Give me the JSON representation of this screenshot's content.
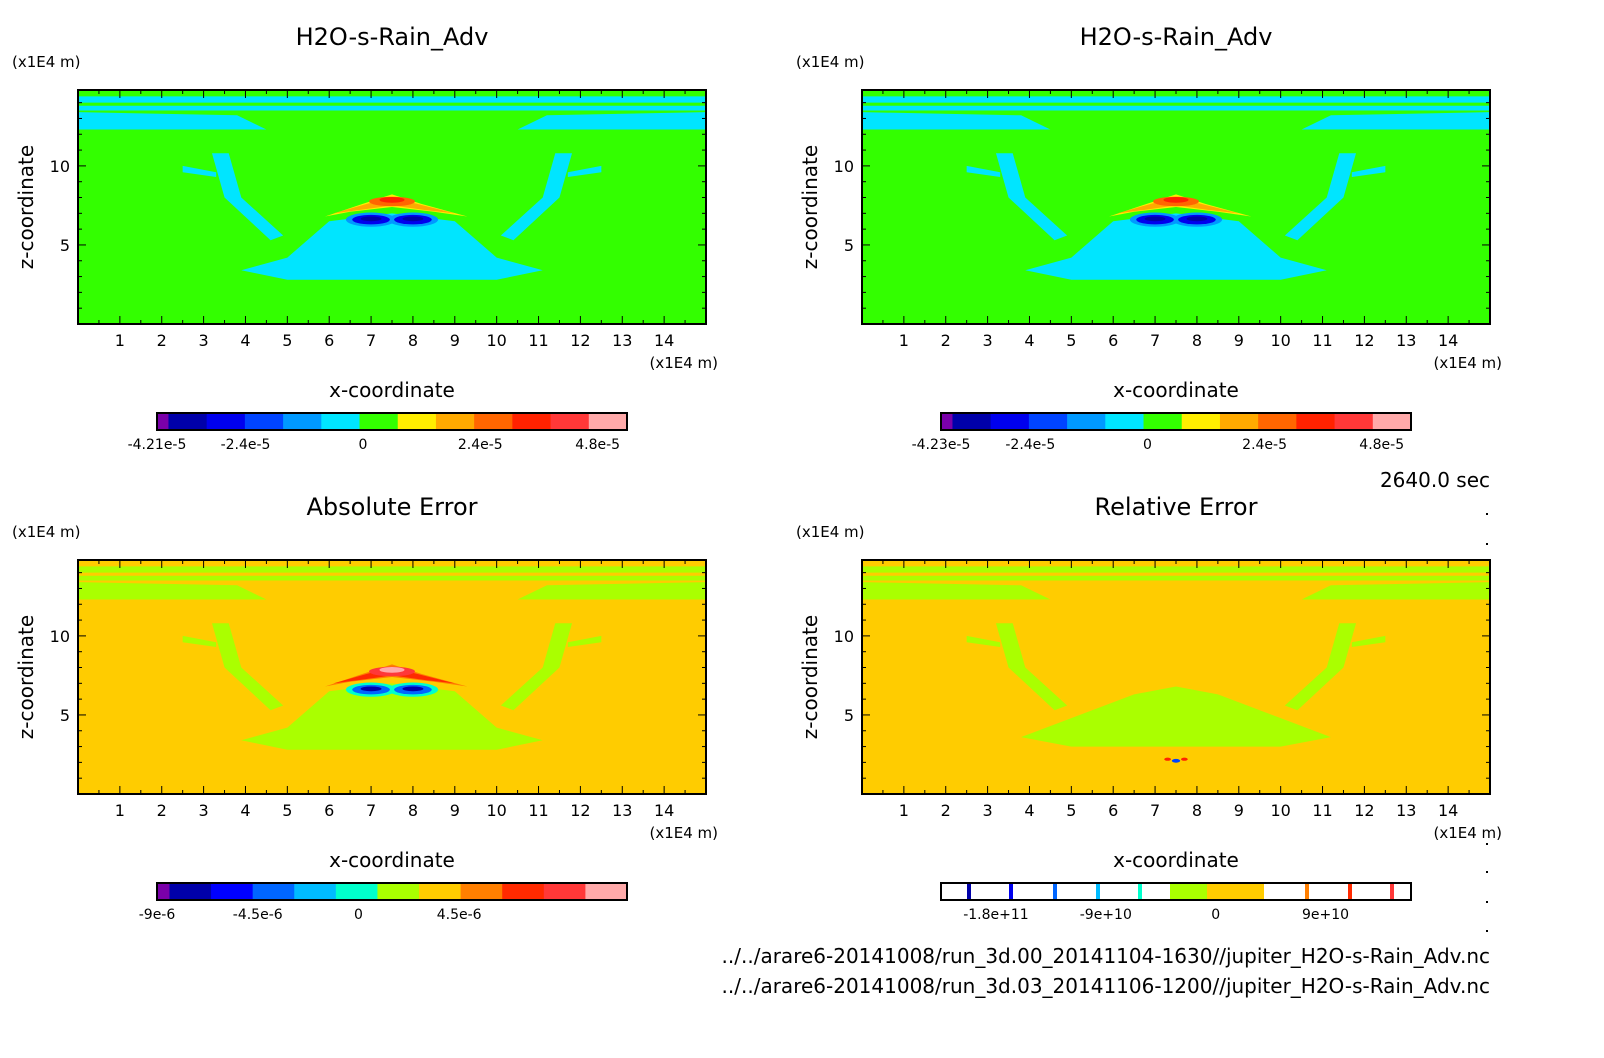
{
  "time_label": "2640.0 sec",
  "files": [
    "../../arare6-20141008/run_3d.00_20141104-1630//jupiter_H2O-s-Rain_Adv.nc",
    "../../arare6-20141008/run_3d.03_20141106-1200//jupiter_H2O-s-Rain_Adv.nc"
  ],
  "chart_data": [
    {
      "type": "heatmap",
      "title": "H2O-s-Rain_Adv",
      "xlabel": "x-coordinate",
      "ylabel": "z-coordinate",
      "x_unit": "(x1E4 m)",
      "y_unit": "(x1E4 m)",
      "xlim": [
        0,
        15
      ],
      "ylim": [
        0,
        14.8
      ],
      "xticks": [
        "1",
        "2",
        "3",
        "4",
        "5",
        "6",
        "7",
        "8",
        "9",
        "10",
        "11",
        "12",
        "13",
        "14"
      ],
      "yticks": [
        "5",
        "10"
      ],
      "colorbar": {
        "colors": [
          "#7a00aa",
          "#0000aa",
          "#0000ee",
          "#0044ff",
          "#0099ff",
          "#00e5ff",
          "#33ff00",
          "#ffee00",
          "#ffaa00",
          "#ff6600",
          "#ff2200",
          "#ff3838",
          "#ffaaaa"
        ],
        "labels": [
          {
            "text": "-4.21e-5",
            "value": -4.21e-05
          },
          {
            "text": "-2.4e-5",
            "value": -2.4e-05
          },
          {
            "text": "0",
            "value": 0
          },
          {
            "text": "2.4e-5",
            "value": 2.4e-05
          },
          {
            "text": "4.8e-5",
            "value": 4.8e-05
          }
        ],
        "range": [
          -4.21e-05,
          5.4e-05
        ]
      },
      "palette": {
        "bg": "#33ff00",
        "band": "#00e5ff",
        "lo1": "#0099ff",
        "lo2": "#0000ee",
        "lo3": "#0000aa",
        "hi1": "#ffee00",
        "hi2": "#ffaa00",
        "hi3": "#ff6600",
        "hi4": "#ff2200"
      }
    },
    {
      "type": "heatmap",
      "title": "H2O-s-Rain_Adv",
      "xlabel": "x-coordinate",
      "ylabel": "z-coordinate",
      "x_unit": "(x1E4 m)",
      "y_unit": "(x1E4 m)",
      "xlim": [
        0,
        15
      ],
      "ylim": [
        0,
        14.8
      ],
      "xticks": [
        "1",
        "2",
        "3",
        "4",
        "5",
        "6",
        "7",
        "8",
        "9",
        "10",
        "11",
        "12",
        "13",
        "14"
      ],
      "yticks": [
        "5",
        "10"
      ],
      "colorbar": {
        "colors": [
          "#7a00aa",
          "#0000aa",
          "#0000ee",
          "#0044ff",
          "#0099ff",
          "#00e5ff",
          "#33ff00",
          "#ffee00",
          "#ffaa00",
          "#ff6600",
          "#ff2200",
          "#ff3838",
          "#ffaaaa"
        ],
        "labels": [
          {
            "text": "-4.23e-5",
            "value": -4.23e-05
          },
          {
            "text": "-2.4e-5",
            "value": -2.4e-05
          },
          {
            "text": "0",
            "value": 0
          },
          {
            "text": "2.4e-5",
            "value": 2.4e-05
          },
          {
            "text": "4.8e-5",
            "value": 4.8e-05
          }
        ],
        "range": [
          -4.23e-05,
          5.4e-05
        ]
      },
      "palette": {
        "bg": "#33ff00",
        "band": "#00e5ff",
        "lo1": "#0099ff",
        "lo2": "#0000ee",
        "lo3": "#0000aa",
        "hi1": "#ffee00",
        "hi2": "#ffaa00",
        "hi3": "#ff6600",
        "hi4": "#ff2200"
      }
    },
    {
      "type": "heatmap",
      "title": "Absolute Error",
      "xlabel": "x-coordinate",
      "ylabel": "z-coordinate",
      "x_unit": "(x1E4 m)",
      "y_unit": "(x1E4 m)",
      "xlim": [
        0,
        15
      ],
      "ylim": [
        0,
        14.8
      ],
      "xticks": [
        "1",
        "2",
        "3",
        "4",
        "5",
        "6",
        "7",
        "8",
        "9",
        "10",
        "11",
        "12",
        "13",
        "14"
      ],
      "yticks": [
        "5",
        "10"
      ],
      "colorbar": {
        "colors": [
          "#7a00aa",
          "#0000aa",
          "#0000ff",
          "#0066ff",
          "#00bbff",
          "#00ffcc",
          "#aaff00",
          "#ffcc00",
          "#ff7f00",
          "#ff2a00",
          "#ff3838",
          "#ffaaaa"
        ],
        "labels": [
          {
            "text": "-9e-6",
            "value": -9e-06
          },
          {
            "text": "-4.5e-6",
            "value": -4.5e-06
          },
          {
            "text": "0",
            "value": 0
          },
          {
            "text": "4.5e-6",
            "value": 4.5e-06
          }
        ],
        "range": [
          -9e-06,
          1.2e-05
        ]
      },
      "palette": {
        "bg": "#ffcc00",
        "band": "#aaff00",
        "lo1": "#00ffcc",
        "lo2": "#0066ff",
        "lo3": "#0000aa",
        "hi1": "#ff7f00",
        "hi2": "#ff2a00",
        "hi3": "#ff3838",
        "hi4": "#ffaaaa"
      }
    },
    {
      "type": "heatmap",
      "title": "Relative Error",
      "xlabel": "x-coordinate",
      "ylabel": "z-coordinate",
      "x_unit": "(x1E4 m)",
      "y_unit": "(x1E4 m)",
      "xlim": [
        0,
        15
      ],
      "ylim": [
        0,
        14.8
      ],
      "xticks": [
        "1",
        "2",
        "3",
        "4",
        "5",
        "6",
        "7",
        "8",
        "9",
        "10",
        "11",
        "12",
        "13",
        "14"
      ],
      "yticks": [
        "5",
        "10"
      ],
      "colorbar": {
        "colors": [
          "#7a00aa",
          "#0000aa",
          "#0000ff",
          "#0066ff",
          "#00bbff",
          "#00ffcc",
          "#aaff00",
          "#ffcc00",
          "#ff7f00",
          "#ff2a00",
          "#ff3838"
        ],
        "labels": [
          {
            "text": "-1.8e+11",
            "value": -180000000000.0
          },
          {
            "text": "-9e+10",
            "value": -90000000000.0
          },
          {
            "text": "0",
            "value": 0
          },
          {
            "text": "9e+10",
            "value": 90000000000.0
          }
        ],
        "range": [
          -225000000000.0,
          160000000000.0
        ],
        "style": "lines"
      },
      "palette": {
        "bg": "#ffcc00",
        "band": "#aaff00"
      }
    }
  ]
}
